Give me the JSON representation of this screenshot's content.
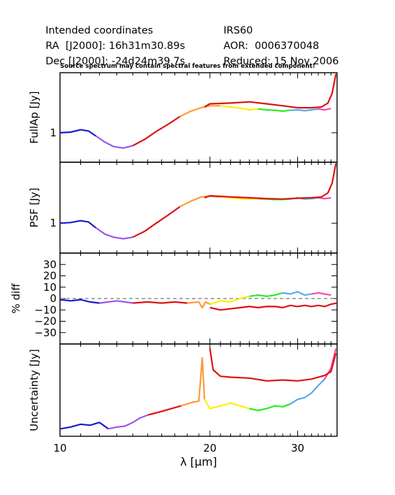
{
  "header": {
    "left": [
      {
        "label": "Intended coordinates",
        "value": ""
      },
      {
        "label": "RA  [J2000]: ",
        "value": "16h31m30.89s"
      },
      {
        "label": "Dec [J2000]: ",
        "value": "-24d24m39.7s"
      }
    ],
    "right": [
      {
        "label": "IRS60",
        "value": ""
      },
      {
        "label": "AOR:  ",
        "value": "0006370048"
      },
      {
        "label": "Reduced: ",
        "value": "15 Nov 2006"
      }
    ],
    "note": "Source spectrum may contain spectral features from extended component!"
  },
  "colors": {
    "segments": [
      "#1a1acc",
      "#9955ee",
      "#dd1111",
      "#ff9933",
      "#ffee00",
      "#22ee22",
      "#55aaee",
      "#ff44aa",
      "#ee22ee"
    ],
    "extended": "#dd1111",
    "axis": "#000000",
    "zero_line": "#555555"
  },
  "chart_data": [
    {
      "type": "line",
      "panel": "fullap",
      "ylabel": "FullAp [Jy]",
      "xscale": "log",
      "xlim": [
        10,
        36
      ],
      "ylim_log": [
        0.62,
        2.65
      ],
      "yticks": [
        {
          "value": 1,
          "label": "1"
        }
      ],
      "points_source": [
        [
          10.0,
          1.0
        ],
        [
          10.5,
          1.01
        ],
        [
          11.0,
          1.05
        ],
        [
          11.4,
          1.03
        ],
        [
          11.8,
          0.95
        ],
        [
          12.3,
          0.86
        ],
        [
          12.8,
          0.8
        ],
        [
          13.4,
          0.78
        ],
        [
          14.0,
          0.81
        ],
        [
          14.8,
          0.9
        ],
        [
          15.6,
          1.02
        ],
        [
          16.5,
          1.15
        ],
        [
          17.4,
          1.3
        ],
        [
          18.3,
          1.42
        ],
        [
          19.2,
          1.5
        ],
        [
          20.0,
          1.55
        ],
        [
          21.0,
          1.55
        ],
        [
          22.0,
          1.52
        ],
        [
          23.0,
          1.49
        ],
        [
          24.0,
          1.45
        ],
        [
          25.0,
          1.47
        ],
        [
          26.0,
          1.45
        ],
        [
          27.0,
          1.44
        ],
        [
          28.0,
          1.42
        ],
        [
          29.0,
          1.44
        ],
        [
          30.0,
          1.45
        ],
        [
          31.0,
          1.43
        ],
        [
          32.0,
          1.45
        ],
        [
          33.0,
          1.47
        ],
        [
          34.0,
          1.45
        ],
        [
          35.0,
          1.48
        ]
      ],
      "points_extended": [
        [
          19.5,
          1.52
        ],
        [
          20.0,
          1.6
        ],
        [
          22.0,
          1.62
        ],
        [
          24.0,
          1.65
        ],
        [
          26.0,
          1.6
        ],
        [
          28.0,
          1.55
        ],
        [
          30.0,
          1.5
        ],
        [
          32.0,
          1.5
        ],
        [
          33.5,
          1.52
        ],
        [
          34.5,
          1.62
        ],
        [
          35.2,
          1.9
        ],
        [
          35.8,
          2.6
        ]
      ]
    },
    {
      "type": "line",
      "panel": "psf",
      "ylabel": "PSF [Jy]",
      "xscale": "log",
      "xlim": [
        10,
        36
      ],
      "ylim_log": [
        0.62,
        2.65
      ],
      "yticks": [
        {
          "value": 1,
          "label": "1"
        }
      ],
      "points_source": [
        [
          10.0,
          1.0
        ],
        [
          10.5,
          1.01
        ],
        [
          11.0,
          1.04
        ],
        [
          11.4,
          1.02
        ],
        [
          11.8,
          0.93
        ],
        [
          12.3,
          0.84
        ],
        [
          12.8,
          0.8
        ],
        [
          13.4,
          0.78
        ],
        [
          14.0,
          0.8
        ],
        [
          14.8,
          0.88
        ],
        [
          15.6,
          1.0
        ],
        [
          16.5,
          1.14
        ],
        [
          17.4,
          1.3
        ],
        [
          18.3,
          1.42
        ],
        [
          19.2,
          1.52
        ],
        [
          20.0,
          1.54
        ],
        [
          21.0,
          1.52
        ],
        [
          22.0,
          1.5
        ],
        [
          23.0,
          1.48
        ],
        [
          24.0,
          1.47
        ],
        [
          25.0,
          1.48
        ],
        [
          26.0,
          1.47
        ],
        [
          27.0,
          1.46
        ],
        [
          28.0,
          1.46
        ],
        [
          29.0,
          1.47
        ],
        [
          30.0,
          1.5
        ],
        [
          31.0,
          1.47
        ],
        [
          32.0,
          1.48
        ],
        [
          33.0,
          1.5
        ],
        [
          34.0,
          1.48
        ],
        [
          35.0,
          1.5
        ]
      ],
      "points_extended": [
        [
          19.5,
          1.5
        ],
        [
          20.0,
          1.55
        ],
        [
          22.0,
          1.52
        ],
        [
          24.0,
          1.5
        ],
        [
          26.0,
          1.48
        ],
        [
          28.0,
          1.47
        ],
        [
          30.0,
          1.49
        ],
        [
          32.0,
          1.5
        ],
        [
          33.5,
          1.52
        ],
        [
          34.5,
          1.62
        ],
        [
          35.2,
          1.9
        ],
        [
          35.8,
          2.6
        ]
      ]
    },
    {
      "type": "line",
      "panel": "diff",
      "ylabel": "% diff",
      "xscale": "log",
      "xlim": [
        10,
        36
      ],
      "ylim": [
        -40,
        40
      ],
      "yticks": [
        {
          "value": 30,
          "label": "30"
        },
        {
          "value": 20,
          "label": "20"
        },
        {
          "value": 10,
          "label": "10"
        },
        {
          "value": 0,
          "label": "0"
        },
        {
          "value": -10,
          "label": "−10"
        },
        {
          "value": -20,
          "label": "−20"
        },
        {
          "value": -30,
          "label": "−30"
        }
      ],
      "points_source": [
        [
          10.0,
          -1
        ],
        [
          10.5,
          -2
        ],
        [
          11.0,
          -1
        ],
        [
          11.5,
          -3
        ],
        [
          12.0,
          -4
        ],
        [
          12.5,
          -3
        ],
        [
          13.0,
          -2
        ],
        [
          13.5,
          -3
        ],
        [
          14.0,
          -4
        ],
        [
          15.0,
          -3
        ],
        [
          16.0,
          -4
        ],
        [
          17.0,
          -3
        ],
        [
          18.0,
          -4
        ],
        [
          19.0,
          -3
        ],
        [
          19.3,
          -8
        ],
        [
          19.6,
          -3
        ],
        [
          20.0,
          -5
        ],
        [
          21.0,
          -2
        ],
        [
          22.0,
          -3
        ],
        [
          23.0,
          0
        ],
        [
          24.0,
          2
        ],
        [
          25.0,
          3
        ],
        [
          26.0,
          2
        ],
        [
          27.0,
          3
        ],
        [
          28.0,
          5
        ],
        [
          29.0,
          4
        ],
        [
          30.0,
          6
        ],
        [
          31.0,
          3
        ],
        [
          32.0,
          4
        ],
        [
          33.0,
          5
        ],
        [
          34.0,
          4
        ],
        [
          35.0,
          3
        ]
      ],
      "points_extended": [
        [
          20.0,
          -8
        ],
        [
          21.0,
          -10
        ],
        [
          22.0,
          -9
        ],
        [
          23.0,
          -8
        ],
        [
          24.0,
          -7
        ],
        [
          25.0,
          -8
        ],
        [
          26.0,
          -7
        ],
        [
          27.0,
          -7
        ],
        [
          28.0,
          -8
        ],
        [
          29.0,
          -6
        ],
        [
          30.0,
          -7
        ],
        [
          31.0,
          -6
        ],
        [
          32.0,
          -7
        ],
        [
          33.0,
          -6
        ],
        [
          34.0,
          -7
        ],
        [
          35.0,
          -5
        ],
        [
          36.0,
          -4
        ]
      ]
    },
    {
      "type": "line",
      "panel": "uncertainty",
      "ylabel": "Uncertainty [Jy]",
      "xscale": "log",
      "xlim": [
        10,
        36
      ],
      "xticks": [
        {
          "value": 10,
          "label": "10"
        },
        {
          "value": 20,
          "label": "20"
        },
        {
          "value": 30,
          "label": "30"
        }
      ],
      "xlabel": "λ [μm]",
      "ylim": [
        0,
        1
      ],
      "yticks": [],
      "points_source": [
        [
          10.0,
          0.08
        ],
        [
          10.5,
          0.1
        ],
        [
          11.0,
          0.13
        ],
        [
          11.5,
          0.12
        ],
        [
          12.0,
          0.15
        ],
        [
          12.5,
          0.08
        ],
        [
          13.0,
          0.1
        ],
        [
          13.5,
          0.11
        ],
        [
          14.0,
          0.15
        ],
        [
          14.5,
          0.2
        ],
        [
          15.0,
          0.23
        ],
        [
          15.5,
          0.25
        ],
        [
          16.0,
          0.27
        ],
        [
          16.5,
          0.29
        ],
        [
          17.0,
          0.31
        ],
        [
          17.5,
          0.33
        ],
        [
          18.0,
          0.35
        ],
        [
          18.5,
          0.37
        ],
        [
          19.0,
          0.38
        ],
        [
          19.3,
          0.85
        ],
        [
          19.5,
          0.4
        ],
        [
          20.0,
          0.3
        ],
        [
          21.0,
          0.33
        ],
        [
          22.0,
          0.36
        ],
        [
          23.0,
          0.33
        ],
        [
          24.0,
          0.3
        ],
        [
          25.0,
          0.28
        ],
        [
          26.0,
          0.3
        ],
        [
          27.0,
          0.33
        ],
        [
          28.0,
          0.32
        ],
        [
          29.0,
          0.35
        ],
        [
          30.0,
          0.4
        ],
        [
          31.0,
          0.42
        ],
        [
          32.0,
          0.47
        ],
        [
          33.0,
          0.55
        ],
        [
          34.0,
          0.62
        ],
        [
          35.0,
          0.74
        ],
        [
          35.8,
          0.95
        ]
      ],
      "points_extended": [
        [
          20.0,
          0.95
        ],
        [
          20.3,
          0.72
        ],
        [
          21.0,
          0.65
        ],
        [
          22.0,
          0.64
        ],
        [
          24.0,
          0.63
        ],
        [
          26.0,
          0.6
        ],
        [
          28.0,
          0.61
        ],
        [
          30.0,
          0.6
        ],
        [
          32.0,
          0.62
        ],
        [
          34.0,
          0.66
        ],
        [
          35.0,
          0.7
        ],
        [
          35.8,
          0.9
        ]
      ]
    }
  ]
}
